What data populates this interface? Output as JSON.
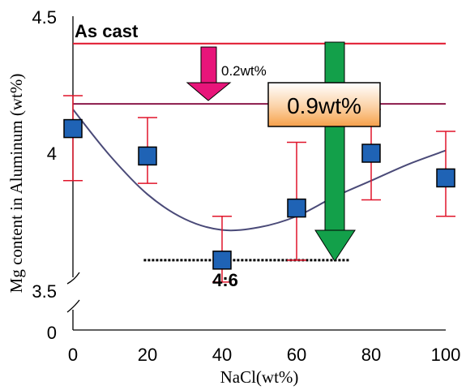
{
  "chart_data": {
    "type": "scatter",
    "title": "",
    "xlabel": "NaCl(wt%)",
    "ylabel": "Mg content in Aluminum (wt%)",
    "xlim": [
      0,
      100
    ],
    "ylim": [
      3.5,
      4.5
    ],
    "y_axis_break": true,
    "x_ticks": [
      "0",
      "20",
      "40",
      "60",
      "80",
      "100"
    ],
    "y_ticks": [
      "4.5",
      "4",
      "3.5",
      "0"
    ],
    "grid": false,
    "legend": "none",
    "series": [
      {
        "marker": "square",
        "color": "#1f63b5",
        "points": [
          {
            "x": 0,
            "y": 4.09,
            "err_low": 3.9,
            "err_high": 4.21
          },
          {
            "x": 20,
            "y": 3.99,
            "err_low": 3.89,
            "err_high": 4.13
          },
          {
            "x": 40,
            "y": 3.61,
            "err_low": 3.53,
            "err_high": 3.77
          },
          {
            "x": 60,
            "y": 3.8,
            "err_low": 3.61,
            "err_high": 4.04
          },
          {
            "x": 80,
            "y": 4.0,
            "err_low": 3.83,
            "err_high": 4.16
          },
          {
            "x": 100,
            "y": 3.91,
            "err_low": 3.77,
            "err_high": 4.08
          }
        ]
      }
    ],
    "trend_curve": {
      "color": "#4a4a78",
      "x": [
        0,
        10,
        20,
        30,
        40,
        50,
        60,
        70,
        80,
        90,
        100
      ],
      "y": [
        4.16,
        3.99,
        3.85,
        3.76,
        3.72,
        3.73,
        3.77,
        3.84,
        3.9,
        3.96,
        4.01
      ]
    },
    "reference_lines": [
      {
        "y": 4.4,
        "color": "#e0142a"
      },
      {
        "y": 4.18,
        "color": "#8b1a4a"
      },
      {
        "y": 3.61,
        "x_from": 19,
        "x_to": 74,
        "style": "dotted",
        "color": "#000000"
      }
    ],
    "annotations": {
      "as_cast": "As cast",
      "small_drop": "0.2wt%",
      "big_drop": "0.9wt%",
      "ratio": "4:6"
    },
    "colors": {
      "magenta_arrow": "#e8157a",
      "green_arrow": "#13a04a",
      "box_fill_top": "#ffffff",
      "box_fill_bottom": "#f6a04a",
      "error_bar": "#e0142a"
    }
  }
}
